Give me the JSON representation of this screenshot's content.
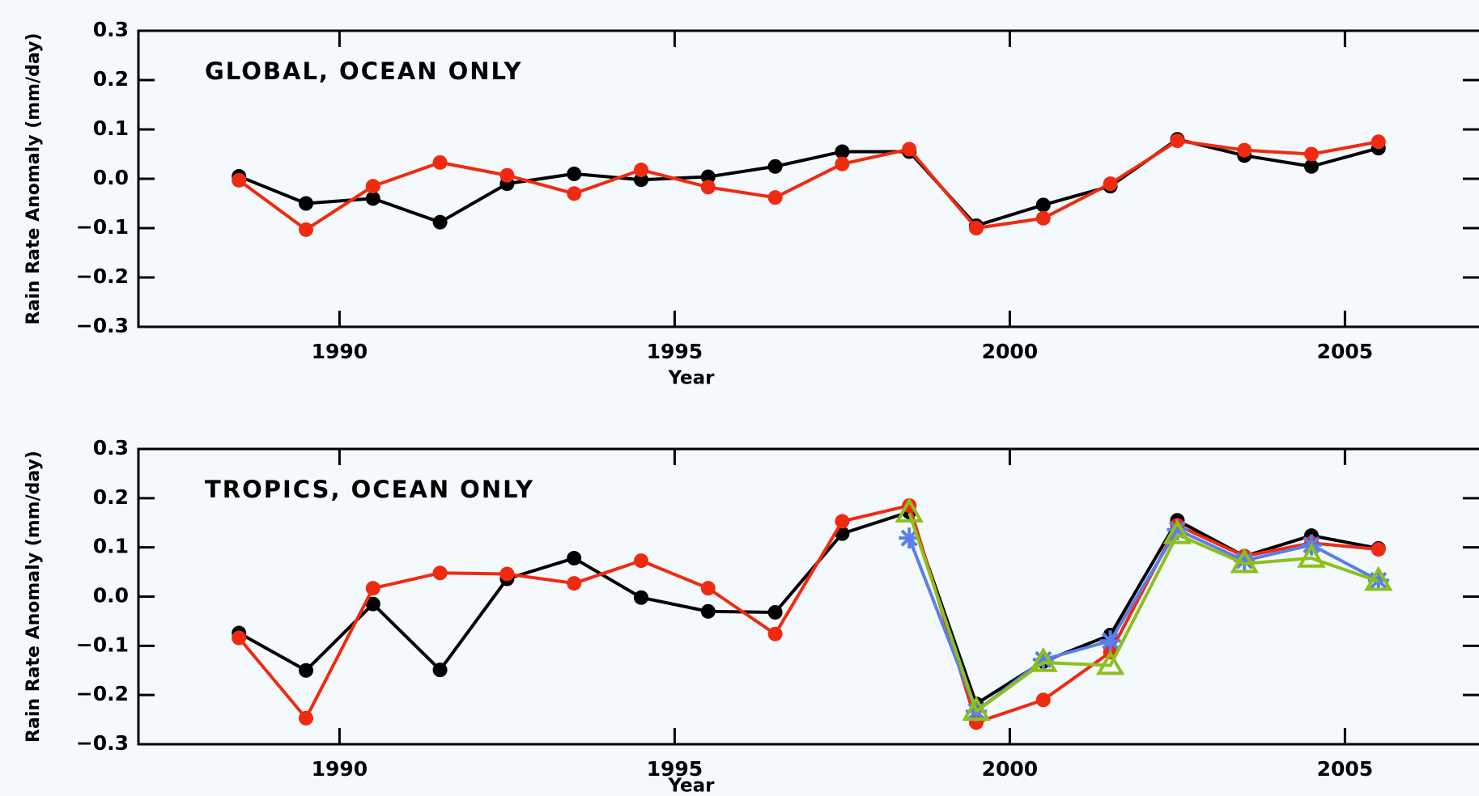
{
  "chart_data": [
    {
      "type": "line",
      "title": "GLOBAL, OCEAN ONLY",
      "xlabel": "Year",
      "ylabel": "Rain Rate Anomaly (mm/day)",
      "x": [
        1988.5,
        1989.5,
        1990.5,
        1991.5,
        1992.5,
        1993.5,
        1994.5,
        1995.5,
        1996.5,
        1997.5,
        1998.5,
        1999.5,
        2000.5,
        2001.5,
        2002.5,
        2003.5,
        2004.5,
        2005.5
      ],
      "xlim": [
        1987,
        2007
      ],
      "xticks": [
        1990,
        1995,
        2000,
        2005
      ],
      "ylim": [
        -0.3,
        0.3
      ],
      "yticks": [
        {
          "value": -0.3,
          "label": "−0.3"
        },
        {
          "value": -0.2,
          "label": "−0.2"
        },
        {
          "value": -0.1,
          "label": "−0.1"
        },
        {
          "value": 0,
          "label": "0.0"
        },
        0.1,
        0.2,
        0.3
      ],
      "series": [
        {
          "color": "#000000",
          "marker": "circle",
          "values": [
            0.005,
            -0.05,
            -0.04,
            -0.088,
            -0.01,
            0.01,
            -0.002,
            0.004,
            0.025,
            0.055,
            0.055,
            -0.095,
            -0.053,
            -0.015,
            0.08,
            0.047,
            0.025,
            0.062
          ]
        },
        {
          "color": "#f02a10",
          "marker": "circle",
          "values": [
            -0.003,
            -0.103,
            -0.015,
            0.033,
            0.007,
            -0.03,
            0.018,
            -0.017,
            -0.038,
            0.03,
            0.06,
            -0.1,
            -0.08,
            -0.01,
            0.077,
            0.058,
            0.05,
            0.075
          ]
        }
      ]
    },
    {
      "type": "line",
      "title": "TROPICS, OCEAN ONLY",
      "xlabel": "Year",
      "ylabel": "Rain Rate Anomaly (mm/day)",
      "x": [
        1988.5,
        1989.5,
        1990.5,
        1991.5,
        1992.5,
        1993.5,
        1994.5,
        1995.5,
        1996.5,
        1997.5,
        1998.5,
        1999.5,
        2000.5,
        2001.5,
        2002.5,
        2003.5,
        2004.5,
        2005.5
      ],
      "xlim": [
        1987,
        2007
      ],
      "xticks": [
        1990,
        1995,
        2000,
        2005
      ],
      "ylim": [
        -0.3,
        0.3
      ],
      "yticks": [
        {
          "value": -0.3,
          "label": "−0.3"
        },
        {
          "value": -0.2,
          "label": "−0.2"
        },
        {
          "value": -0.1,
          "label": "−0.1"
        },
        {
          "value": 0,
          "label": "0.0"
        },
        0.1,
        0.2,
        0.3
      ],
      "series": [
        {
          "color": "#000000",
          "marker": "circle",
          "values": [
            -0.074,
            -0.15,
            -0.015,
            -0.149,
            0.036,
            0.078,
            -0.002,
            -0.03,
            -0.032,
            0.128,
            0.172,
            -0.218,
            -0.132,
            -0.078,
            0.155,
            0.082,
            0.124,
            0.098
          ]
        },
        {
          "color": "#f02a10",
          "marker": "circle",
          "values": [
            -0.084,
            -0.247,
            0.017,
            0.048,
            0.046,
            0.027,
            0.073,
            0.017,
            -0.076,
            0.153,
            0.185,
            -0.256,
            -0.21,
            -0.113,
            0.145,
            0.082,
            0.109,
            0.096
          ]
        },
        {
          "color": "#5b7fe8",
          "marker": "star",
          "values": [
            null,
            null,
            null,
            null,
            null,
            null,
            null,
            null,
            null,
            null,
            0.119,
            -0.233,
            -0.128,
            -0.09,
            0.136,
            0.073,
            0.105,
            0.033
          ]
        },
        {
          "color": "#8cc01a",
          "marker": "triangle",
          "values": [
            null,
            null,
            null,
            null,
            null,
            null,
            null,
            null,
            null,
            null,
            0.17,
            -0.233,
            -0.134,
            -0.14,
            0.126,
            0.067,
            0.078,
            0.031
          ]
        }
      ]
    }
  ]
}
